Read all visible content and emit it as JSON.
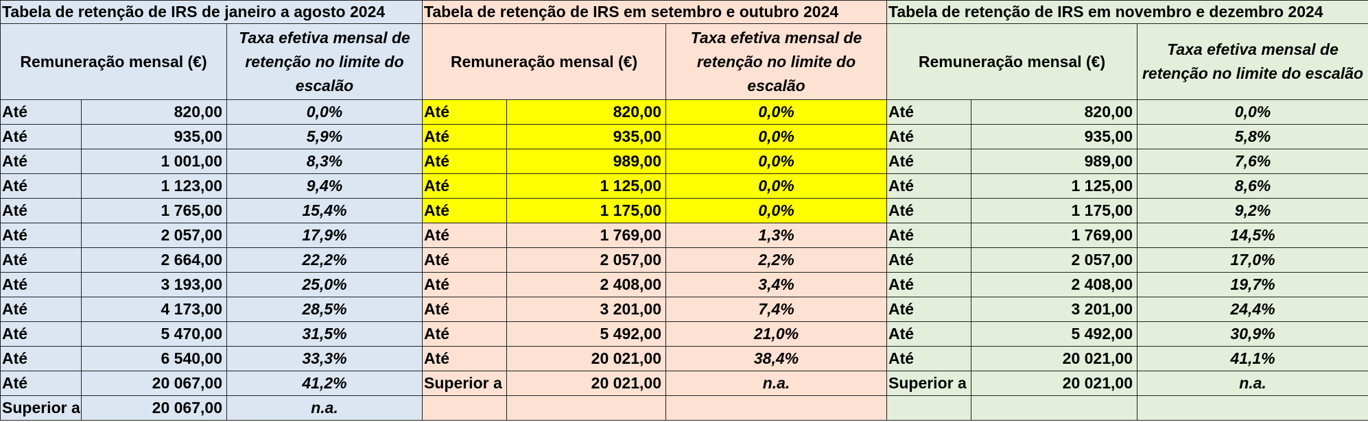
{
  "sections": [
    {
      "title": "Tabela de retenção de IRS  de janeiro a agosto 2024",
      "col_remuneracao": "Remuneração mensal (€)",
      "col_taxa": "Taxa efetiva mensal de retenção no limite do escalão",
      "rows": [
        {
          "label": "Até",
          "value": "820,00",
          "rate": "0,0%"
        },
        {
          "label": "Até",
          "value": "935,00",
          "rate": "5,9%"
        },
        {
          "label": "Até",
          "value": "1 001,00",
          "rate": "8,3%"
        },
        {
          "label": "Até",
          "value": "1 123,00",
          "rate": "9,4%"
        },
        {
          "label": "Até",
          "value": "1 765,00",
          "rate": "15,4%"
        },
        {
          "label": "Até",
          "value": "2 057,00",
          "rate": "17,9%"
        },
        {
          "label": "Até",
          "value": "2 664,00",
          "rate": "22,2%"
        },
        {
          "label": "Até",
          "value": "3 193,00",
          "rate": "25,0%"
        },
        {
          "label": "Até",
          "value": "4 173,00",
          "rate": "28,5%"
        },
        {
          "label": "Até",
          "value": "5 470,00",
          "rate": "31,5%"
        },
        {
          "label": "Até",
          "value": "6 540,00",
          "rate": "33,3%"
        },
        {
          "label": "Até",
          "value": "20 067,00",
          "rate": "41,2%"
        },
        {
          "label": "Superior a",
          "value": "20 067,00",
          "rate": "n.a."
        }
      ]
    },
    {
      "title": "Tabela de retenção de IRS em setembro e outubro 2024",
      "col_remuneracao": "Remuneração mensal (€)",
      "col_taxa": "Taxa efetiva mensal de retenção no limite do escalão",
      "rows": [
        {
          "label": "Até",
          "value": "820,00",
          "rate": "0,0%"
        },
        {
          "label": "Até",
          "value": "935,00",
          "rate": "0,0%"
        },
        {
          "label": "Até",
          "value": "989,00",
          "rate": "0,0%"
        },
        {
          "label": "Até",
          "value": "1 125,00",
          "rate": "0,0%"
        },
        {
          "label": "Até",
          "value": "1 175,00",
          "rate": "0,0%"
        },
        {
          "label": "Até",
          "value": "1 769,00",
          "rate": "1,3%"
        },
        {
          "label": "Até",
          "value": "2 057,00",
          "rate": "2,2%"
        },
        {
          "label": "Até",
          "value": "2 408,00",
          "rate": "3,4%"
        },
        {
          "label": "Até",
          "value": "3 201,00",
          "rate": "7,4%"
        },
        {
          "label": "Até",
          "value": "5 492,00",
          "rate": "21,0%"
        },
        {
          "label": "Até",
          "value": "20 021,00",
          "rate": "38,4%"
        },
        {
          "label": "Superior a",
          "value": "20 021,00",
          "rate": "n.a."
        },
        {
          "label": "",
          "value": "",
          "rate": ""
        }
      ]
    },
    {
      "title": "Tabela de retenção de IRS em novembro e dezembro 2024",
      "col_remuneracao": "Remuneração mensal (€)",
      "col_taxa": "Taxa efetiva mensal de retenção no limite do escalão",
      "rows": [
        {
          "label": "Até",
          "value": "820,00",
          "rate": "0,0%"
        },
        {
          "label": "Até",
          "value": "935,00",
          "rate": "5,8%"
        },
        {
          "label": "Até",
          "value": "989,00",
          "rate": "7,6%"
        },
        {
          "label": "Até",
          "value": "1 125,00",
          "rate": "8,6%"
        },
        {
          "label": "Até",
          "value": "1 175,00",
          "rate": "9,2%"
        },
        {
          "label": "Até",
          "value": "1 769,00",
          "rate": "14,5%"
        },
        {
          "label": "Até",
          "value": "2 057,00",
          "rate": "17,0%"
        },
        {
          "label": "Até",
          "value": "2 408,00",
          "rate": "19,7%"
        },
        {
          "label": "Até",
          "value": "3 201,00",
          "rate": "24,4%"
        },
        {
          "label": "Até",
          "value": "5 492,00",
          "rate": "30,9%"
        },
        {
          "label": "Até",
          "value": "20 021,00",
          "rate": "41,1%"
        },
        {
          "label": "Superior a",
          "value": "20 021,00",
          "rate": "n.a."
        },
        {
          "label": "",
          "value": "",
          "rate": ""
        }
      ]
    }
  ],
  "highlight": {
    "color": "#ffff00",
    "section": 1,
    "rows": [
      0,
      1,
      2,
      3,
      4
    ]
  },
  "colors": {
    "section_1_bg": "#dce6f2",
    "section_2_bg": "#fde1d3",
    "section_3_bg": "#e3efda"
  }
}
